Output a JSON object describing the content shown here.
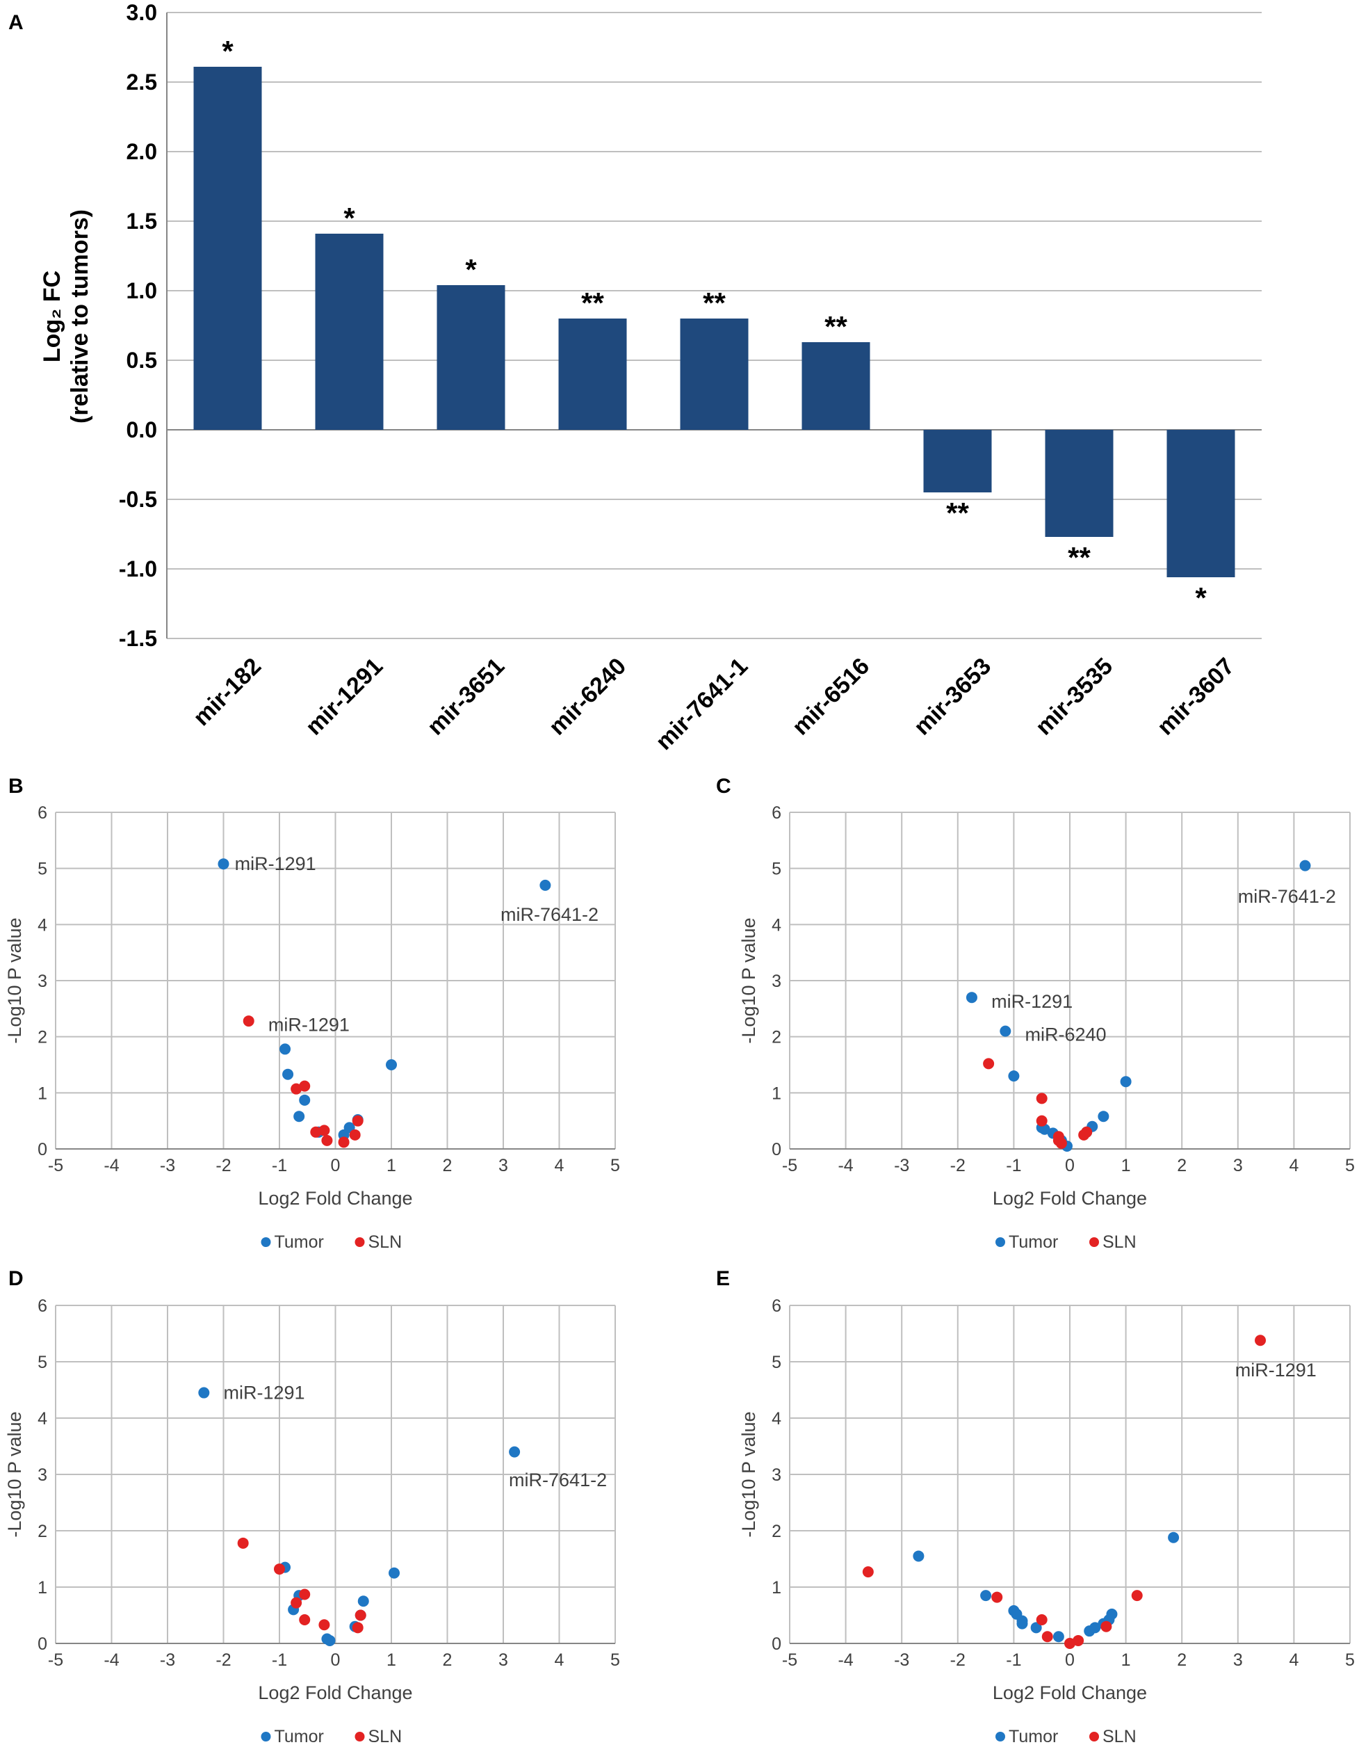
{
  "chart_data": [
    {
      "panel": "A",
      "type": "bar",
      "ylabel_line1": "Log₂ FC",
      "ylabel_line2": "(relative to tumors)",
      "ylim": [
        -1.5,
        3.0
      ],
      "yticks": [
        "3.0",
        "2.5",
        "2.0",
        "1.5",
        "1.0",
        "0.5",
        "0.0",
        "-0.5",
        "-1.0",
        "-1.5"
      ],
      "categories": [
        "mir-182",
        "mir-1291",
        "mir-3651",
        "mir-6240",
        "mir-7641-1",
        "mir-6516",
        "mir-3653",
        "mir-3535",
        "mir-3607"
      ],
      "values": [
        2.61,
        1.41,
        1.04,
        0.8,
        0.8,
        0.63,
        -0.45,
        -0.77,
        -1.06
      ],
      "significance": [
        "*",
        "*",
        "*",
        "**",
        "**",
        "**",
        "**",
        "**",
        "*"
      ],
      "color": "#1f497d"
    },
    {
      "panel": "B",
      "type": "scatter",
      "xlabel": "Log2 Fold Change",
      "ylabel": "-Log10  P value",
      "xlim": [
        -5,
        5
      ],
      "ylim": [
        0,
        6
      ],
      "xticks": [
        "-5",
        "-4",
        "-3",
        "-2",
        "-1",
        "0",
        "1",
        "2",
        "3",
        "4",
        "5"
      ],
      "yticks": [
        "0",
        "1",
        "2",
        "3",
        "4",
        "5",
        "6"
      ],
      "series": [
        {
          "name": "Tumor",
          "color": "#1f77c4",
          "points": [
            [
              -2.0,
              5.08
            ],
            [
              3.75,
              4.7
            ],
            [
              -0.9,
              1.78
            ],
            [
              1.0,
              1.5
            ],
            [
              -0.85,
              1.33
            ],
            [
              -0.55,
              0.87
            ],
            [
              -0.65,
              0.58
            ],
            [
              0.4,
              0.52
            ],
            [
              0.25,
              0.38
            ],
            [
              0.15,
              0.25
            ],
            [
              -0.3,
              0.3
            ]
          ]
        },
        {
          "name": "SLN",
          "color": "#e32222",
          "points": [
            [
              -1.55,
              2.28
            ],
            [
              -0.55,
              1.12
            ],
            [
              -0.7,
              1.07
            ],
            [
              -0.2,
              0.33
            ],
            [
              -0.35,
              0.3
            ],
            [
              0.4,
              0.5
            ],
            [
              0.35,
              0.25
            ],
            [
              0.15,
              0.12
            ],
            [
              -0.15,
              0.15
            ]
          ]
        }
      ],
      "annotations": [
        {
          "text": "miR-1291",
          "x": -1.8,
          "y": 5.08
        },
        {
          "text": "miR-7641-2",
          "x": 2.95,
          "y": 4.18
        },
        {
          "text": "miR-1291",
          "x": -1.2,
          "y": 2.21
        }
      ],
      "legend": [
        "Tumor",
        "SLN"
      ]
    },
    {
      "panel": "C",
      "type": "scatter",
      "xlabel": "Log2 Fold Change",
      "ylabel": "-Log10  P value",
      "xlim": [
        -5,
        5
      ],
      "ylim": [
        0,
        6
      ],
      "xticks": [
        "-5",
        "-4",
        "-3",
        "-2",
        "-1",
        "0",
        "1",
        "2",
        "3",
        "4",
        "5"
      ],
      "yticks": [
        "0",
        "1",
        "2",
        "3",
        "4",
        "5",
        "6"
      ],
      "series": [
        {
          "name": "Tumor",
          "color": "#1f77c4",
          "points": [
            [
              4.2,
              5.05
            ],
            [
              -1.75,
              2.7
            ],
            [
              -1.15,
              2.1
            ],
            [
              -1.0,
              1.3
            ],
            [
              1.0,
              1.2
            ],
            [
              0.6,
              0.58
            ],
            [
              -0.5,
              0.38
            ],
            [
              -0.45,
              0.35
            ],
            [
              -0.3,
              0.28
            ],
            [
              0.4,
              0.4
            ],
            [
              0.3,
              0.3
            ],
            [
              -0.15,
              0.15
            ],
            [
              -0.05,
              0.05
            ]
          ]
        },
        {
          "name": "SLN",
          "color": "#e32222",
          "points": [
            [
              -1.45,
              1.52
            ],
            [
              -0.5,
              0.9
            ],
            [
              -0.5,
              0.5
            ],
            [
              -0.2,
              0.22
            ],
            [
              -0.15,
              0.1
            ],
            [
              0.3,
              0.3
            ],
            [
              0.25,
              0.25
            ],
            [
              -0.2,
              0.15
            ]
          ]
        }
      ],
      "annotations": [
        {
          "text": "miR-7641-2",
          "x": 3.0,
          "y": 4.5
        },
        {
          "text": "miR-1291",
          "x": -1.4,
          "y": 2.63
        },
        {
          "text": "miR-6240",
          "x": -0.8,
          "y": 2.04
        }
      ],
      "legend": [
        "Tumor",
        "SLN"
      ]
    },
    {
      "panel": "D",
      "type": "scatter",
      "xlabel": "Log2 Fold Change",
      "ylabel": "-Log10  P value",
      "xlim": [
        -5,
        5
      ],
      "ylim": [
        0,
        6
      ],
      "xticks": [
        "-5",
        "-4",
        "-3",
        "-2",
        "-1",
        "0",
        "1",
        "2",
        "3",
        "4",
        "5"
      ],
      "yticks": [
        "0",
        "1",
        "2",
        "3",
        "4",
        "5",
        "6"
      ],
      "series": [
        {
          "name": "Tumor",
          "color": "#1f77c4",
          "points": [
            [
              -2.35,
              4.45
            ],
            [
              3.2,
              3.4
            ],
            [
              -0.9,
              1.35
            ],
            [
              1.05,
              1.25
            ],
            [
              0.5,
              0.75
            ],
            [
              -0.65,
              0.85
            ],
            [
              -0.75,
              0.6
            ],
            [
              0.45,
              0.5
            ],
            [
              0.35,
              0.3
            ],
            [
              -0.15,
              0.08
            ],
            [
              -0.1,
              0.05
            ]
          ]
        },
        {
          "name": "SLN",
          "color": "#e32222",
          "points": [
            [
              -1.65,
              1.78
            ],
            [
              -1.0,
              1.32
            ],
            [
              -0.55,
              0.87
            ],
            [
              -0.7,
              0.72
            ],
            [
              -0.55,
              0.42
            ],
            [
              -0.2,
              0.33
            ],
            [
              0.45,
              0.5
            ],
            [
              0.4,
              0.28
            ]
          ]
        }
      ],
      "annotations": [
        {
          "text": "miR-1291",
          "x": -2.0,
          "y": 4.45
        },
        {
          "text": "miR-7641-2",
          "x": 3.1,
          "y": 2.9
        }
      ],
      "legend": [
        "Tumor",
        "SLN"
      ]
    },
    {
      "panel": "E",
      "type": "scatter",
      "xlabel": "Log2 Fold Change",
      "ylabel": "-Log10  P value",
      "xlim": [
        -5,
        5
      ],
      "ylim": [
        0,
        6
      ],
      "xticks": [
        "-5",
        "-4",
        "-3",
        "-2",
        "-1",
        "0",
        "1",
        "2",
        "3",
        "4",
        "5"
      ],
      "yticks": [
        "0",
        "1",
        "2",
        "3",
        "4",
        "5",
        "6"
      ],
      "series": [
        {
          "name": "Tumor",
          "color": "#1f77c4",
          "points": [
            [
              -2.7,
              1.55
            ],
            [
              1.85,
              1.88
            ],
            [
              -1.5,
              0.85
            ],
            [
              -1.0,
              0.58
            ],
            [
              -0.95,
              0.52
            ],
            [
              -0.85,
              0.4
            ],
            [
              -0.85,
              0.35
            ],
            [
              -0.6,
              0.28
            ],
            [
              -0.2,
              0.12
            ],
            [
              0.35,
              0.22
            ],
            [
              0.45,
              0.28
            ],
            [
              0.6,
              0.35
            ],
            [
              0.75,
              0.52
            ],
            [
              0.7,
              0.42
            ]
          ]
        },
        {
          "name": "SLN",
          "color": "#e32222",
          "points": [
            [
              3.4,
              5.38
            ],
            [
              -3.6,
              1.27
            ],
            [
              -1.3,
              0.82
            ],
            [
              1.2,
              0.85
            ],
            [
              -0.5,
              0.42
            ],
            [
              -0.4,
              0.12
            ],
            [
              0.0,
              0.0
            ],
            [
              0.15,
              0.05
            ],
            [
              0.65,
              0.3
            ]
          ]
        }
      ],
      "annotations": [
        {
          "text": "miR-1291",
          "x": 2.95,
          "y": 4.85
        }
      ],
      "legend": [
        "Tumor",
        "SLN"
      ]
    }
  ]
}
